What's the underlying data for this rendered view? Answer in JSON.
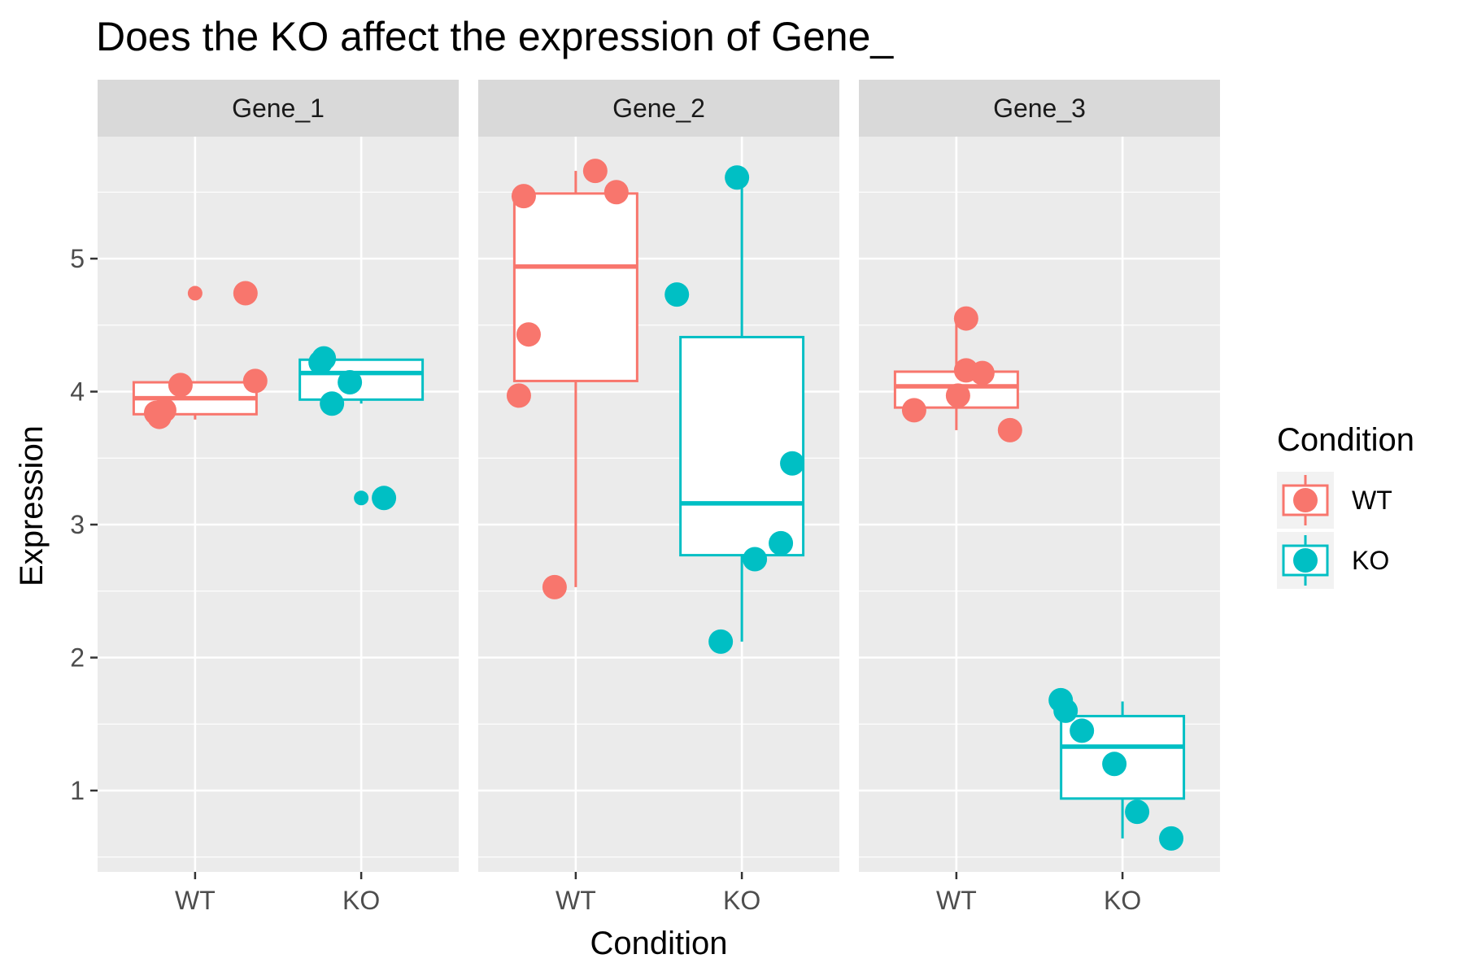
{
  "chart_data": {
    "type": "box",
    "title": "Does the KO affect the expression of Gene_",
    "xlabel": "Condition",
    "ylabel": "Expression",
    "ylim": [
      0.4,
      5.9
    ],
    "yticks": [
      1,
      2,
      3,
      4,
      5
    ],
    "grid": true,
    "legend": {
      "title": "Condition",
      "position": "right",
      "entries": [
        {
          "label": "WT",
          "color": "#F8766D"
        },
        {
          "label": "KO",
          "color": "#00BFC4"
        }
      ]
    },
    "categories": [
      "WT",
      "KO"
    ],
    "colors": {
      "WT": "#F8766D",
      "KO": "#00BFC4"
    },
    "panels": [
      {
        "name": "Gene_1",
        "boxes": [
          {
            "group": "WT",
            "q1": 3.83,
            "median": 3.95,
            "q3": 4.07,
            "whisker_low": 3.79,
            "whisker_high": 4.07,
            "outliers": [
              4.74
            ]
          },
          {
            "group": "KO",
            "q1": 3.94,
            "median": 4.14,
            "q3": 4.24,
            "whisker_low": 3.91,
            "whisker_high": 4.24,
            "outliers": [
              3.2
            ]
          }
        ],
        "points": [
          {
            "group": "WT",
            "x_offset": -0.24,
            "y": 3.84
          },
          {
            "group": "WT",
            "x_offset": -0.22,
            "y": 3.81
          },
          {
            "group": "WT",
            "x_offset": -0.19,
            "y": 3.86
          },
          {
            "group": "WT",
            "x_offset": -0.09,
            "y": 4.05
          },
          {
            "group": "WT",
            "x_offset": 0.31,
            "y": 4.74
          },
          {
            "group": "WT",
            "x_offset": 0.37,
            "y": 4.08
          },
          {
            "group": "KO",
            "x_offset": -0.25,
            "y": 4.22
          },
          {
            "group": "KO",
            "x_offset": -0.23,
            "y": 4.25
          },
          {
            "group": "KO",
            "x_offset": -0.18,
            "y": 3.91
          },
          {
            "group": "KO",
            "x_offset": -0.07,
            "y": 4.07
          },
          {
            "group": "KO",
            "x_offset": 0.14,
            "y": 3.2
          }
        ]
      },
      {
        "name": "Gene_2",
        "boxes": [
          {
            "group": "WT",
            "q1": 4.08,
            "median": 4.94,
            "q3": 5.49,
            "whisker_low": 2.53,
            "whisker_high": 5.66,
            "outliers": []
          },
          {
            "group": "KO",
            "q1": 2.77,
            "median": 3.16,
            "q3": 4.41,
            "whisker_low": 2.12,
            "whisker_high": 5.61,
            "outliers": []
          }
        ],
        "points": [
          {
            "group": "WT",
            "x_offset": -0.35,
            "y": 3.97
          },
          {
            "group": "WT",
            "x_offset": -0.32,
            "y": 5.47
          },
          {
            "group": "WT",
            "x_offset": -0.29,
            "y": 4.43
          },
          {
            "group": "WT",
            "x_offset": -0.13,
            "y": 2.53
          },
          {
            "group": "WT",
            "x_offset": 0.12,
            "y": 5.66
          },
          {
            "group": "WT",
            "x_offset": 0.25,
            "y": 5.5
          },
          {
            "group": "KO",
            "x_offset": -0.4,
            "y": 4.73
          },
          {
            "group": "KO",
            "x_offset": -0.13,
            "y": 2.12
          },
          {
            "group": "KO",
            "x_offset": -0.03,
            "y": 5.61
          },
          {
            "group": "KO",
            "x_offset": 0.08,
            "y": 2.74
          },
          {
            "group": "KO",
            "x_offset": 0.24,
            "y": 2.86
          },
          {
            "group": "KO",
            "x_offset": 0.31,
            "y": 3.46
          }
        ]
      },
      {
        "name": "Gene_3",
        "boxes": [
          {
            "group": "WT",
            "q1": 3.88,
            "median": 4.04,
            "q3": 4.15,
            "whisker_low": 3.71,
            "whisker_high": 4.55,
            "outliers": []
          },
          {
            "group": "KO",
            "q1": 0.94,
            "median": 1.33,
            "q3": 1.56,
            "whisker_low": 0.64,
            "whisker_high": 1.67,
            "outliers": []
          }
        ],
        "points": [
          {
            "group": "WT",
            "x_offset": -0.26,
            "y": 3.86
          },
          {
            "group": "WT",
            "x_offset": 0.01,
            "y": 3.97
          },
          {
            "group": "WT",
            "x_offset": 0.06,
            "y": 4.16
          },
          {
            "group": "WT",
            "x_offset": 0.06,
            "y": 4.55
          },
          {
            "group": "WT",
            "x_offset": 0.16,
            "y": 4.14
          },
          {
            "group": "WT",
            "x_offset": 0.33,
            "y": 3.71
          },
          {
            "group": "KO",
            "x_offset": -0.38,
            "y": 1.68
          },
          {
            "group": "KO",
            "x_offset": -0.35,
            "y": 1.6
          },
          {
            "group": "KO",
            "x_offset": -0.25,
            "y": 1.45
          },
          {
            "group": "KO",
            "x_offset": -0.05,
            "y": 1.2
          },
          {
            "group": "KO",
            "x_offset": 0.09,
            "y": 0.84
          },
          {
            "group": "KO",
            "x_offset": 0.3,
            "y": 0.64
          }
        ]
      }
    ]
  }
}
